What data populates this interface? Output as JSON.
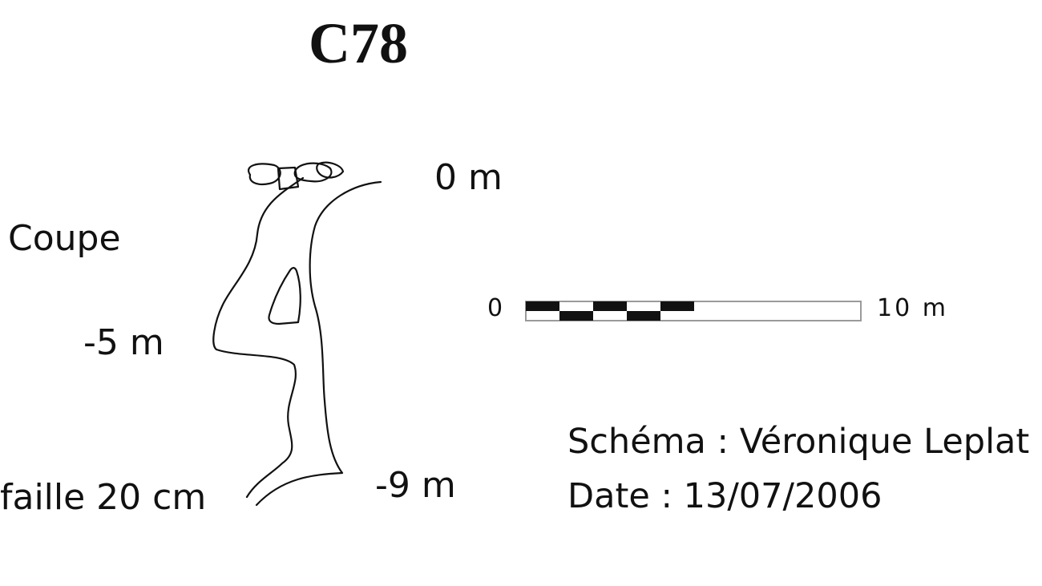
{
  "title": "C78",
  "section_label": "Coupe",
  "depths": {
    "top": "0 m",
    "mid": "-5 m",
    "bottom": "-9 m"
  },
  "fault_label": "faille 20 cm",
  "scale_bar": {
    "min_label": "0",
    "max_label": "10 m",
    "segments": 10
  },
  "credits": {
    "author": "Schéma : Véronique Leplat",
    "date": "Date : 13/07/2006"
  },
  "colors": {
    "ink": "#111111",
    "paper": "#ffffff",
    "scale_outline": "#9a9a9a"
  }
}
